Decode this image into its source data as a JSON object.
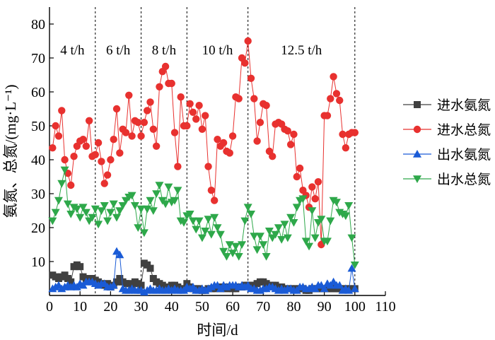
{
  "chart_data": {
    "type": "line",
    "xlabel": "时间/d",
    "ylabel": "氨氮、总氮/(mg·L⁻¹)",
    "xlim": [
      0,
      110
    ],
    "ylim": [
      0,
      85
    ],
    "xticks": [
      0,
      10,
      20,
      30,
      40,
      50,
      60,
      70,
      80,
      90,
      100,
      110
    ],
    "yticks": [
      10,
      20,
      30,
      40,
      50,
      60,
      70,
      80
    ],
    "grid": false,
    "legend_position": "right",
    "period_dividers": [
      15,
      30,
      45,
      65,
      100
    ],
    "period_labels": [
      {
        "text": "4 t/h",
        "x": 7.5
      },
      {
        "text": "6 t/h",
        "x": 22.5
      },
      {
        "text": "8 t/h",
        "x": 37.5
      },
      {
        "text": "10 t/h",
        "x": 55
      },
      {
        "text": "12.5 t/h",
        "x": 82.5
      }
    ],
    "series": [
      {
        "name": "进水氨氮",
        "color": "#404040",
        "marker": "square",
        "x": [
          1,
          2,
          3,
          4,
          5,
          6,
          7,
          8,
          9,
          10,
          11,
          12,
          13,
          14,
          15,
          16,
          17,
          18,
          19,
          20,
          21,
          22,
          23,
          24,
          25,
          26,
          27,
          28,
          29,
          30,
          31,
          32,
          33,
          34,
          35,
          36,
          37,
          38,
          39,
          40,
          41,
          42,
          43,
          44,
          45,
          46,
          47,
          48,
          49,
          50,
          51,
          52,
          53,
          54,
          55,
          56,
          57,
          58,
          59,
          60,
          61,
          62,
          63,
          64,
          65,
          66,
          67,
          68,
          69,
          70,
          71,
          72,
          73,
          74,
          75,
          76,
          77,
          78,
          79,
          80,
          81,
          82,
          83,
          84,
          85,
          86,
          87,
          88,
          89,
          90,
          91,
          92,
          93,
          94,
          95,
          96,
          97,
          98,
          99,
          100
        ],
        "y": [
          6,
          5.5,
          5,
          5.5,
          6,
          5,
          4,
          8.5,
          9,
          8.5,
          5.5,
          5,
          4.5,
          5,
          4.5,
          4,
          3.5,
          3,
          3.5,
          2.5,
          3,
          4,
          5,
          4,
          3.5,
          3.5,
          3,
          4,
          3.5,
          3,
          9.5,
          9,
          8,
          5,
          4,
          3.5,
          3,
          2.5,
          2.5,
          3,
          3,
          2.5,
          2,
          2,
          3.5,
          2.5,
          2,
          2,
          2,
          1.5,
          1.5,
          2,
          2,
          2,
          2.5,
          2,
          2.5,
          2,
          2.5,
          2,
          2,
          2.5,
          2.5,
          3,
          3,
          3,
          3,
          3.5,
          4,
          4,
          3.5,
          3,
          3,
          3,
          2.5,
          2.5,
          2,
          2,
          2,
          2,
          2,
          2,
          2,
          1.5,
          1.5,
          2,
          2,
          2,
          2,
          2,
          2,
          2,
          2,
          2,
          2,
          2,
          2,
          2,
          2,
          2
        ]
      },
      {
        "name": "进水总氮",
        "color": "#e8312f",
        "marker": "circle",
        "x": [
          1,
          2,
          3,
          4,
          5,
          6,
          7,
          8,
          9,
          10,
          11,
          12,
          13,
          14,
          15,
          16,
          17,
          18,
          19,
          20,
          21,
          22,
          23,
          24,
          25,
          26,
          27,
          28,
          29,
          30,
          31,
          32,
          33,
          34,
          35,
          36,
          37,
          38,
          39,
          40,
          41,
          42,
          43,
          44,
          45,
          46,
          47,
          48,
          49,
          50,
          51,
          52,
          53,
          54,
          55,
          56,
          57,
          58,
          59,
          60,
          61,
          62,
          63,
          64,
          65,
          66,
          67,
          68,
          69,
          70,
          71,
          72,
          73,
          74,
          75,
          76,
          77,
          78,
          79,
          80,
          81,
          82,
          83,
          84,
          85,
          86,
          87,
          88,
          89,
          90,
          91,
          92,
          93,
          94,
          95,
          96,
          97,
          98,
          99,
          100
        ],
        "y": [
          43.5,
          50,
          47,
          54.5,
          40,
          36,
          32.5,
          41,
          44,
          45.5,
          46,
          44,
          51.5,
          41,
          41.5,
          45,
          39.5,
          33,
          35.5,
          40,
          46,
          55,
          42,
          49,
          48,
          59,
          47,
          51.5,
          51,
          47,
          51,
          54.5,
          57,
          49,
          44,
          61.5,
          66,
          67.5,
          62.5,
          62.5,
          48,
          38,
          58.5,
          50,
          50,
          56.5,
          54,
          52,
          56,
          49,
          53,
          38,
          31,
          28,
          46,
          44,
          45,
          42.5,
          42,
          47,
          58.5,
          58,
          70,
          68.5,
          75,
          64,
          58,
          45.5,
          51,
          56.5,
          56,
          42.5,
          41,
          50.5,
          51,
          50.5,
          49,
          48.5,
          44.5,
          47.5,
          35,
          37.5,
          31,
          29.5,
          26,
          32,
          28.5,
          33.5,
          15,
          53,
          53,
          58,
          64.5,
          59.5,
          57.5,
          47.5,
          43.5,
          47.5,
          48,
          48
        ]
      },
      {
        "name": "出水氨氮",
        "color": "#1a5bd6",
        "marker": "triangle-up",
        "x": [
          1,
          2,
          3,
          4,
          5,
          6,
          7,
          8,
          9,
          10,
          11,
          12,
          13,
          14,
          15,
          16,
          17,
          18,
          19,
          20,
          21,
          22,
          23,
          24,
          25,
          26,
          27,
          28,
          29,
          30,
          31,
          32,
          33,
          34,
          35,
          36,
          37,
          38,
          39,
          40,
          41,
          42,
          43,
          44,
          45,
          46,
          47,
          48,
          49,
          50,
          51,
          52,
          53,
          54,
          55,
          56,
          57,
          58,
          59,
          60,
          61,
          62,
          63,
          64,
          65,
          66,
          67,
          68,
          69,
          70,
          71,
          72,
          73,
          74,
          75,
          76,
          77,
          78,
          79,
          80,
          81,
          82,
          83,
          84,
          85,
          86,
          87,
          88,
          89,
          90,
          91,
          92,
          93,
          94,
          95,
          96,
          97,
          98,
          99,
          100
        ],
        "y": [
          2,
          2.5,
          3,
          2,
          2.5,
          3,
          2.5,
          3,
          2.5,
          3.5,
          3,
          4,
          4,
          4,
          3.5,
          3,
          3.5,
          3.5,
          2.5,
          2.5,
          3,
          13,
          12,
          2,
          1.5,
          1.5,
          2,
          1.5,
          1.5,
          1.5,
          1,
          1.5,
          2,
          1.5,
          1.5,
          2,
          1.5,
          1.5,
          2,
          1.5,
          2,
          1.5,
          1.5,
          1.5,
          2.5,
          2,
          2.5,
          1.5,
          1.5,
          2,
          1.5,
          2,
          2.5,
          3,
          3,
          2,
          3,
          2.5,
          3,
          3,
          3,
          2.5,
          3,
          2.5,
          3,
          2,
          2,
          1.5,
          1.5,
          2,
          2,
          2.5,
          2.5,
          2,
          1.5,
          2,
          1.5,
          2,
          2,
          1.5,
          1.5,
          2.5,
          2.5,
          2,
          2,
          2.5,
          2,
          3,
          3,
          2,
          3.5,
          3,
          4,
          3,
          3,
          1.5,
          2,
          1.5,
          8,
          2
        ]
      },
      {
        "name": "出水总氮",
        "color": "#2ea84a",
        "marker": "triangle-down",
        "x": [
          1,
          2,
          3,
          4,
          5,
          6,
          7,
          8,
          9,
          10,
          11,
          12,
          13,
          14,
          15,
          16,
          17,
          18,
          19,
          20,
          21,
          22,
          23,
          24,
          25,
          26,
          27,
          28,
          29,
          30,
          31,
          32,
          33,
          34,
          35,
          36,
          37,
          38,
          39,
          40,
          41,
          42,
          43,
          44,
          45,
          46,
          47,
          48,
          49,
          50,
          51,
          52,
          53,
          54,
          55,
          56,
          57,
          58,
          59,
          60,
          61,
          62,
          63,
          64,
          65,
          66,
          67,
          68,
          69,
          70,
          71,
          72,
          73,
          74,
          75,
          76,
          77,
          78,
          79,
          80,
          81,
          82,
          83,
          84,
          85,
          86,
          87,
          88,
          89,
          90,
          91,
          92,
          93,
          94,
          95,
          96,
          97,
          98,
          99,
          100
        ],
        "y": [
          22,
          24.5,
          28,
          33,
          37,
          27,
          24,
          26,
          25.5,
          23,
          26,
          24.5,
          22,
          23,
          25.5,
          21,
          25,
          26.5,
          22,
          24.5,
          27,
          23,
          25,
          26.5,
          28,
          29,
          29.5,
          26.5,
          20,
          25.5,
          18.5,
          25.5,
          28,
          25,
          30,
          32.5,
          28,
          27,
          32,
          27.5,
          28,
          31,
          22,
          21.5,
          23.5,
          24,
          22,
          19.5,
          22,
          17,
          19,
          22.5,
          18,
          23,
          20,
          18,
          13,
          11.5,
          15,
          12.5,
          14.5,
          11.5,
          15,
          22,
          26,
          24,
          17.5,
          13.5,
          17.5,
          15,
          11.5,
          19,
          17,
          18,
          20,
          16.5,
          21,
          17,
          23,
          21.5,
          26,
          28,
          28.5,
          16,
          14.5,
          25,
          17,
          21.5,
          22.5,
          16,
          16,
          22,
          28,
          27.5,
          24.5,
          24,
          23.5,
          26.5,
          17,
          9
        ]
      }
    ]
  }
}
